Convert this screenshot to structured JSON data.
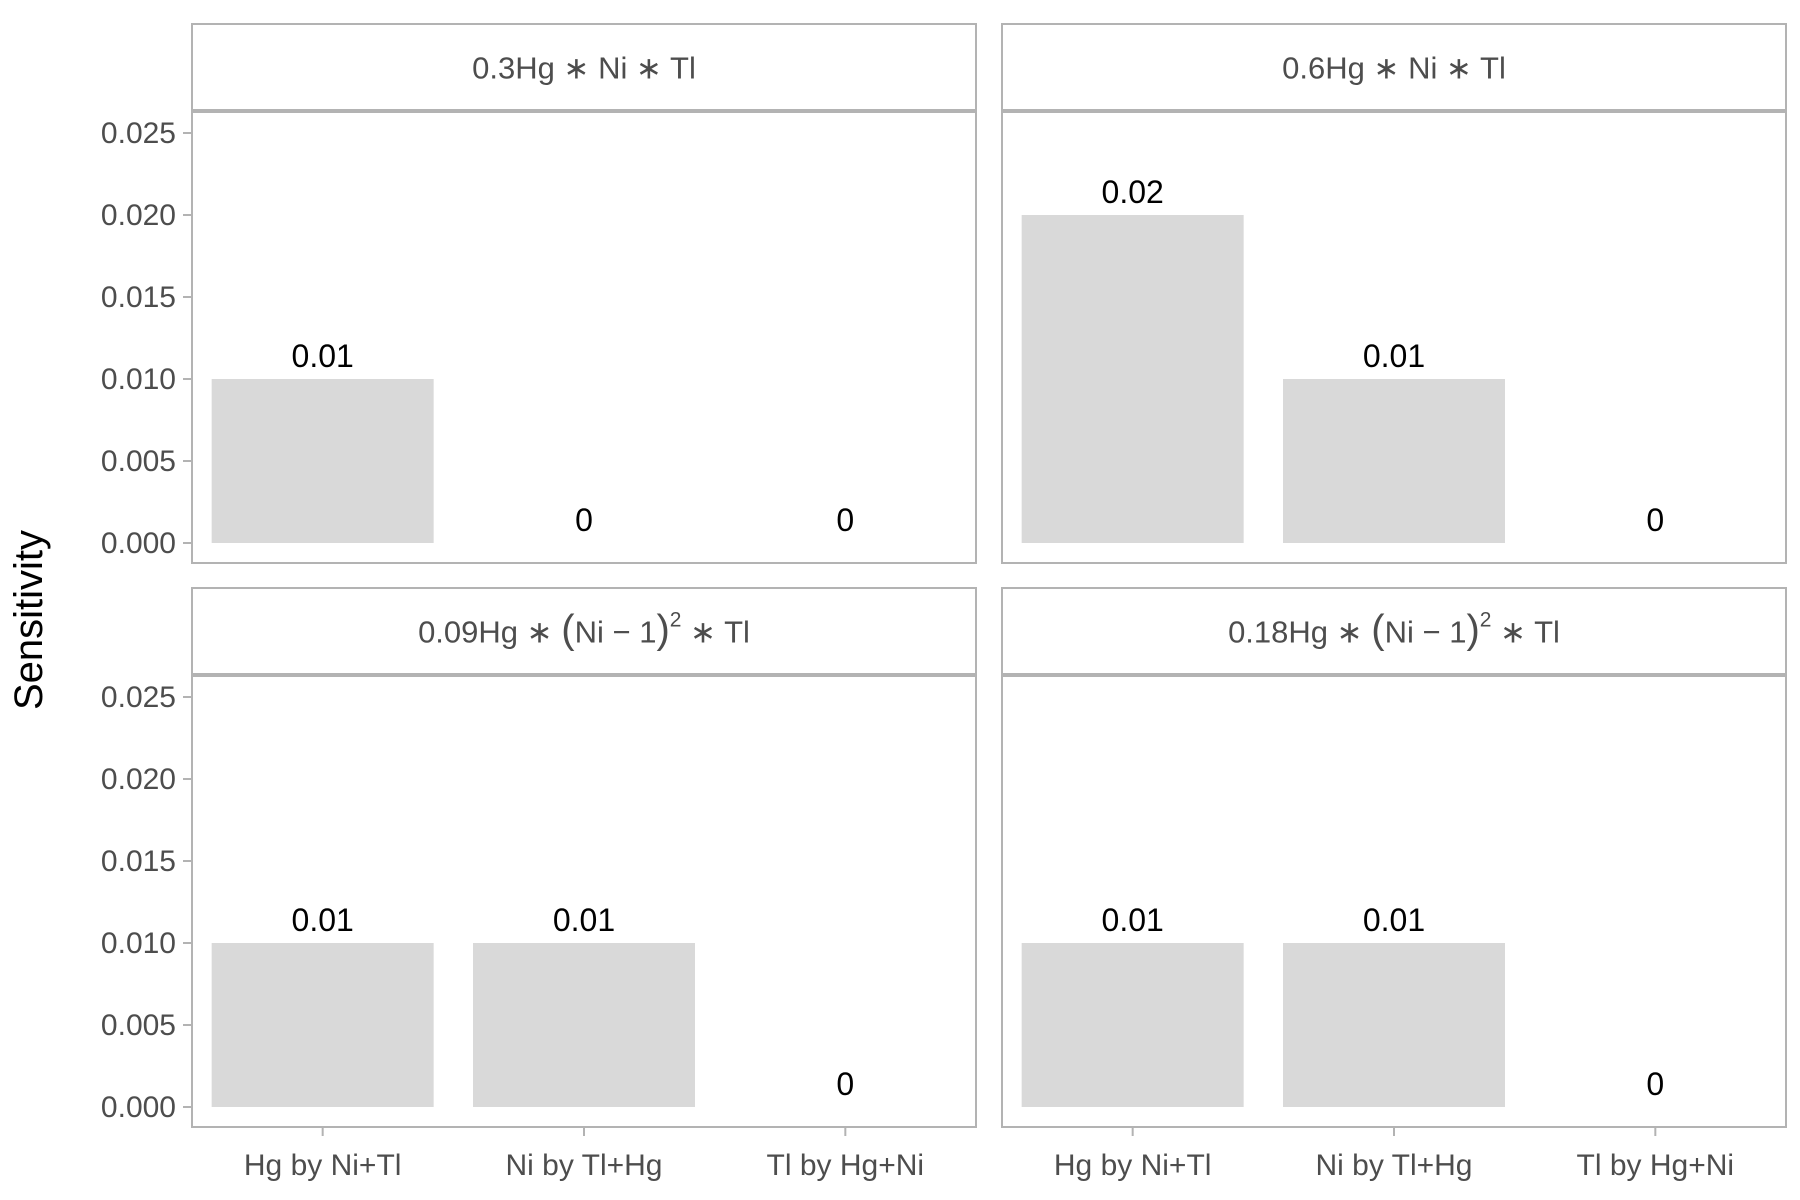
{
  "chart_data": {
    "type": "bar",
    "ylabel": "Sensitivity",
    "ylim": [
      0,
      0.026
    ],
    "yticks": [
      "0.000",
      "0.005",
      "0.010",
      "0.015",
      "0.020",
      "0.025"
    ],
    "ytick_values": [
      0,
      0.005,
      0.01,
      0.015,
      0.02,
      0.025
    ],
    "categories": [
      "Hg by Ni+Tl",
      "Ni by Tl+Hg",
      "Tl by Hg+Ni"
    ],
    "colors": {
      "bar": "#d9d9d9",
      "frame": "#b3b3b3",
      "strip_bg": "#ffffff"
    },
    "panels": [
      {
        "strip": {
          "coef": "0.3",
          "parts": [
            "Hg",
            " ∗ ",
            "Ni",
            " ∗ ",
            "Tl"
          ]
        },
        "values": [
          0.01,
          0,
          0
        ],
        "labels": [
          "0.01",
          "0",
          "0"
        ]
      },
      {
        "strip": {
          "coef": "0.6",
          "parts": [
            "Hg",
            " ∗ ",
            "Ni",
            " ∗ ",
            "Tl"
          ]
        },
        "values": [
          0.02,
          0.01,
          0
        ],
        "labels": [
          "0.02",
          "0.01",
          "0"
        ]
      },
      {
        "strip": {
          "coef": "0.09",
          "parts": [
            "Hg",
            " ∗ ",
            "(",
            "Ni",
            " − ",
            "1",
            ")",
            "2",
            " ∗ ",
            "Tl"
          ]
        },
        "values": [
          0.01,
          0.01,
          0
        ],
        "labels": [
          "0.01",
          "0.01",
          "0"
        ]
      },
      {
        "strip": {
          "coef": "0.18",
          "parts": [
            "Hg",
            " ∗ ",
            "(",
            "Ni",
            " − ",
            "1",
            ")",
            "2",
            " ∗ ",
            "Tl"
          ]
        },
        "values": [
          0.01,
          0.01,
          0
        ],
        "labels": [
          "0.01",
          "0.01",
          "0"
        ]
      }
    ]
  }
}
